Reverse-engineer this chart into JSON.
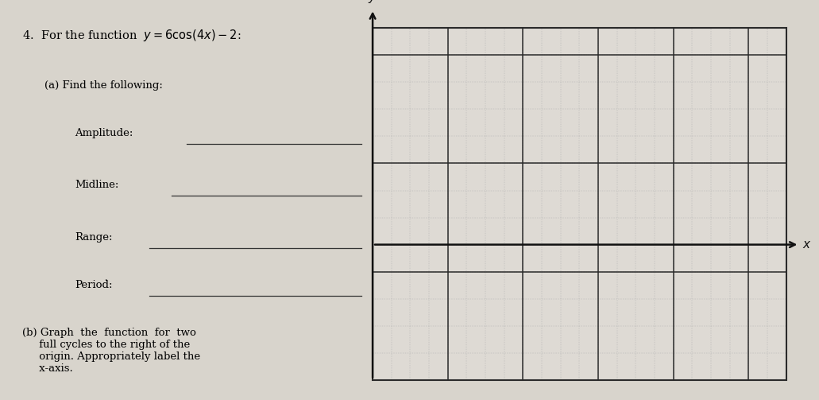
{
  "title_text": "4.  For the function  $y = 6\\cos(4x)-2$:",
  "part_a_label": "(a) Find the following:",
  "amplitude_label": "Amplitude:",
  "midline_label": "Midline:",
  "range_label": "Range:",
  "period_label": "Perioḋ:",
  "part_b_label": "(b) Graph  the  function  for  two\n     full cycles to the right of the\n     origin. Appropriately label the\n     x-axis.",
  "grid_color_major": "#2a2a2a",
  "grid_color_minor": "#b0b0b0",
  "axis_color": "#111111",
  "bg_color": "#d8d4cc",
  "grid_bg": "#dedad4",
  "paper_color": "#e8e4dc",
  "num_cols": 22,
  "num_rows_above": 8,
  "num_rows_below": 5,
  "major_every": 4,
  "minor_every": 1
}
